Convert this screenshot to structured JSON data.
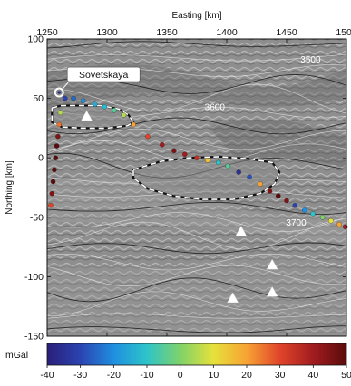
{
  "axes": {
    "x_title": "Easting [km]",
    "y_title": "Northing [km]",
    "x_ticks": [
      1250,
      1300,
      1350,
      1400,
      1450,
      1500
    ],
    "y_ticks": [
      100,
      50,
      0,
      -50,
      -100,
      -150
    ],
    "x_range": [
      1250,
      1500
    ],
    "y_range": [
      -150,
      100
    ]
  },
  "station": {
    "name": "Sovetskaya",
    "easting": 1260,
    "northing": 55
  },
  "contour_labels": [
    {
      "text": "3500",
      "easting": 1470,
      "northing": 80
    },
    {
      "text": "3600",
      "easting": 1390,
      "northing": 40
    },
    {
      "text": "3700",
      "easting": 1458,
      "northing": -57
    }
  ],
  "triangles": [
    {
      "easting": 1283,
      "northing": 35
    },
    {
      "easting": 1412,
      "northing": -62
    },
    {
      "easting": 1438,
      "northing": -90
    },
    {
      "easting": 1405,
      "northing": -118
    },
    {
      "easting": 1438,
      "northing": -113
    }
  ],
  "lakes": [
    {
      "name": "lake-1",
      "outline": [
        [
          1254,
          42
        ],
        [
          1262,
          44
        ],
        [
          1276,
          44
        ],
        [
          1295,
          44
        ],
        [
          1310,
          41
        ],
        [
          1318,
          36
        ],
        [
          1322,
          30
        ],
        [
          1317,
          27
        ],
        [
          1300,
          25
        ],
        [
          1280,
          25
        ],
        [
          1262,
          26
        ],
        [
          1254,
          30
        ]
      ]
    },
    {
      "name": "lake-2",
      "outline": [
        [
          1322,
          -10
        ],
        [
          1345,
          -3
        ],
        [
          1368,
          0
        ],
        [
          1395,
          1
        ],
        [
          1420,
          -1
        ],
        [
          1438,
          -4
        ],
        [
          1444,
          -12
        ],
        [
          1440,
          -22
        ],
        [
          1428,
          -30
        ],
        [
          1405,
          -35
        ],
        [
          1380,
          -35
        ],
        [
          1355,
          -32
        ],
        [
          1334,
          -26
        ],
        [
          1322,
          -17
        ]
      ]
    }
  ],
  "gravity_points": [
    {
      "easting": 1265,
      "northing": 50,
      "value": -30
    },
    {
      "easting": 1272,
      "northing": 50,
      "value": -25
    },
    {
      "easting": 1280,
      "northing": 48,
      "value": -20
    },
    {
      "easting": 1290,
      "northing": 45,
      "value": -15
    },
    {
      "easting": 1298,
      "northing": 43,
      "value": -12
    },
    {
      "easting": 1306,
      "northing": 40,
      "value": -5
    },
    {
      "easting": 1314,
      "northing": 36,
      "value": 5
    },
    {
      "easting": 1322,
      "northing": 28,
      "value": 20
    },
    {
      "easting": 1334,
      "northing": 18,
      "value": 30
    },
    {
      "easting": 1346,
      "northing": 11,
      "value": 40
    },
    {
      "easting": 1356,
      "northing": 6,
      "value": 45
    },
    {
      "easting": 1365,
      "northing": 3,
      "value": 40
    },
    {
      "easting": 1375,
      "northing": 0,
      "value": 35
    },
    {
      "easting": 1384,
      "northing": -2,
      "value": 15
    },
    {
      "easting": 1393,
      "northing": -4,
      "value": -10
    },
    {
      "easting": 1401,
      "northing": -7,
      "value": -5
    },
    {
      "easting": 1410,
      "northing": -12,
      "value": -35
    },
    {
      "easting": 1419,
      "northing": -16,
      "value": -28
    },
    {
      "easting": 1428,
      "northing": -22,
      "value": 20
    },
    {
      "easting": 1436,
      "northing": -28,
      "value": 45
    },
    {
      "easting": 1443,
      "northing": -32,
      "value": 50
    },
    {
      "easting": 1450,
      "northing": -36,
      "value": 45
    },
    {
      "easting": 1457,
      "northing": -40,
      "value": -30
    },
    {
      "easting": 1465,
      "northing": -44,
      "value": -20
    },
    {
      "easting": 1472,
      "northing": -47,
      "value": -10
    },
    {
      "easting": 1480,
      "northing": -50,
      "value": 0
    },
    {
      "easting": 1487,
      "northing": -53,
      "value": 10
    },
    {
      "easting": 1494,
      "northing": -56,
      "value": 20
    },
    {
      "easting": 1499,
      "northing": -58,
      "value": 40
    },
    {
      "easting": 1261,
      "northing": 38,
      "value": 5
    },
    {
      "easting": 1260,
      "northing": 28,
      "value": 25
    },
    {
      "easting": 1259,
      "northing": 18,
      "value": 45
    },
    {
      "easting": 1258,
      "northing": 10,
      "value": 50
    },
    {
      "easting": 1257,
      "northing": 0,
      "value": 50
    },
    {
      "easting": 1256,
      "northing": -10,
      "value": 50
    },
    {
      "easting": 1255,
      "northing": -20,
      "value": 50
    },
    {
      "easting": 1254,
      "northing": -30,
      "value": 45
    },
    {
      "easting": 1253,
      "northing": -40,
      "value": 30
    }
  ],
  "colorbar": {
    "label": "mGal",
    "min": -40,
    "max": 50,
    "ticks": [
      -40,
      -30,
      -20,
      -10,
      0,
      10,
      20,
      30,
      40,
      50
    ],
    "stops": [
      "#2a1f7a",
      "#2b43b0",
      "#1f8fe0",
      "#2ec4c8",
      "#7fd26a",
      "#e6e13a",
      "#f7a334",
      "#e0442a",
      "#a11c1f",
      "#5a0b0b"
    ]
  }
}
